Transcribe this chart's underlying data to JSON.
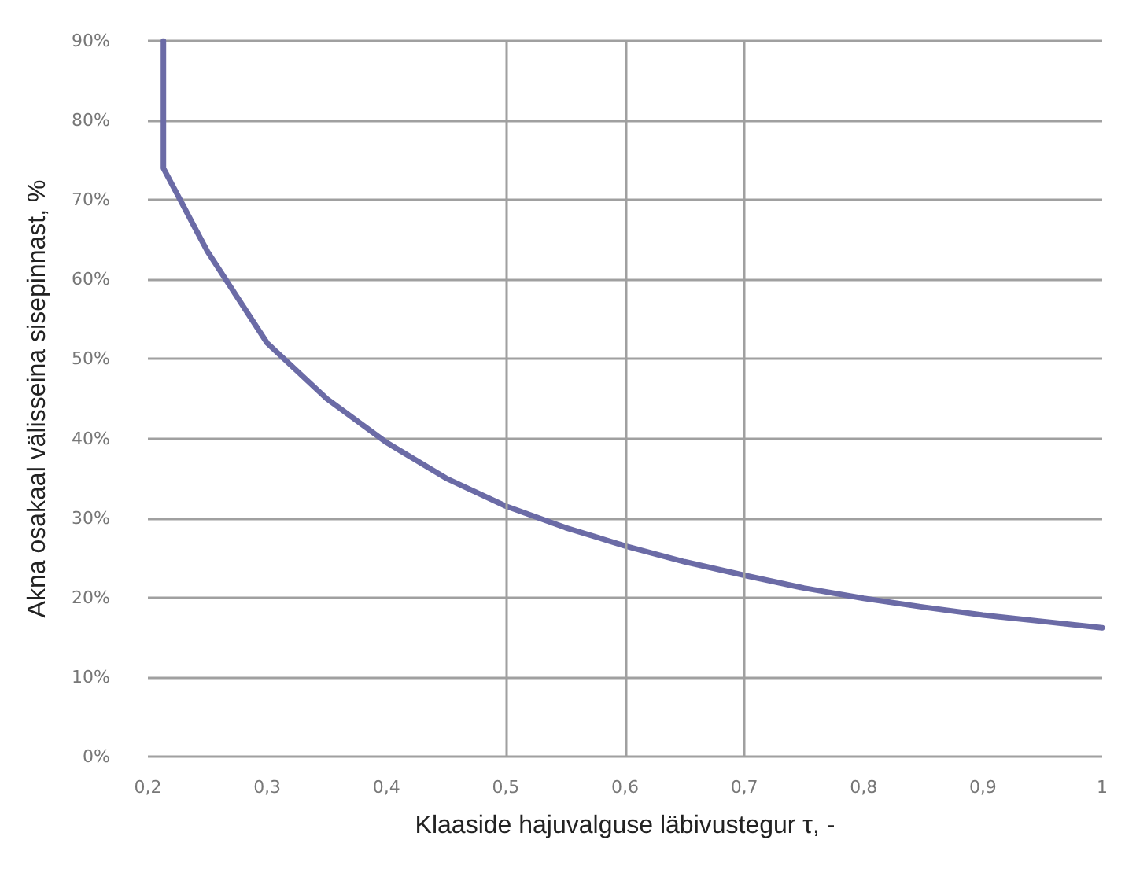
{
  "chart_data": {
    "type": "line",
    "xlabel": "Klaaside hajuvalguse läbivustegur τ, -",
    "ylabel": "Akna osakaal välisseina sisepinnast, %",
    "x": [
      0.213,
      0.213,
      0.25,
      0.3,
      0.35,
      0.4,
      0.45,
      0.5,
      0.55,
      0.6,
      0.65,
      0.7,
      0.75,
      0.8,
      0.85,
      0.9,
      0.95,
      1.0
    ],
    "series": [
      {
        "color": "#6b6ba6",
        "values": [
          90,
          74,
          63.5,
          52,
          45,
          39.5,
          35,
          31.5,
          28.8,
          26.5,
          24.5,
          22.8,
          21.2,
          19.9,
          18.8,
          17.8,
          17,
          16.2
        ]
      }
    ],
    "xlim": [
      0.2,
      1
    ],
    "xticks": [
      {
        "value": 0.2,
        "label": "0,2"
      },
      {
        "value": 0.3,
        "label": "0,3"
      },
      {
        "value": 0.4,
        "label": "0,4"
      },
      {
        "value": 0.5,
        "label": "0,5"
      },
      {
        "value": 0.6,
        "label": "0,6"
      },
      {
        "value": 0.7,
        "label": "0,7"
      },
      {
        "value": 0.8,
        "label": "0,8"
      },
      {
        "value": 0.9,
        "label": "0,9"
      },
      1
    ],
    "ylim": [
      0,
      90
    ],
    "yticks": [
      {
        "value": 0,
        "label": "0%"
      },
      {
        "value": 10,
        "label": "10%"
      },
      {
        "value": 20,
        "label": "20%"
      },
      {
        "value": 30,
        "label": "30%"
      },
      {
        "value": 40,
        "label": "40%"
      },
      {
        "value": 50,
        "label": "50%"
      },
      {
        "value": 60,
        "label": "60%"
      },
      {
        "value": 70,
        "label": "70%"
      },
      {
        "value": 80,
        "label": "80%"
      },
      {
        "value": 90,
        "label": "90%"
      }
    ],
    "grid": "y",
    "marker": "none",
    "line_style": "solid",
    "ref_lines": [
      {
        "axis": "x",
        "value": 0.5,
        "color": "#a0a0a0"
      },
      {
        "axis": "x",
        "value": 0.6,
        "color": "#a0a0a0"
      },
      {
        "axis": "x",
        "value": 0.7,
        "color": "#a0a0a0"
      }
    ]
  }
}
